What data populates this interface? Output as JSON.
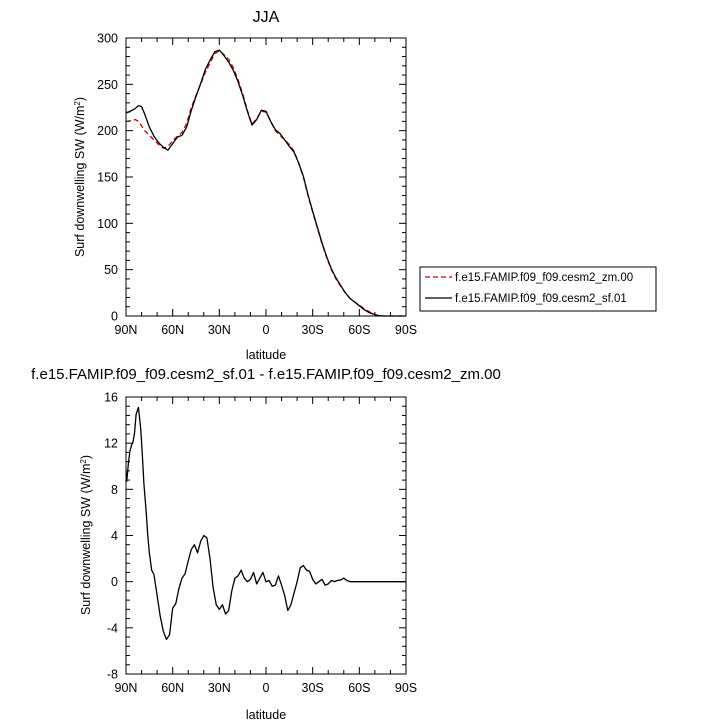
{
  "figure": {
    "top_title": "JJA",
    "bottom_title": "f.e15.FAMIP.f09_f09.cesm2_sf.01 - f.e15.FAMIP.f09_f09.cesm2_zm.00"
  },
  "chart_data": [
    {
      "type": "line",
      "title": "JJA",
      "xlabel": "latitude",
      "ylabel": "Surf downwelling SW (W/m²)",
      "ylabel_main": "Surf downwelling SW (W/m",
      "ylabel_sup": "2",
      "ylabel_close": ")",
      "xlim": [
        90,
        -90
      ],
      "ylim": [
        0,
        300
      ],
      "xticks": [
        90,
        60,
        30,
        0,
        -30,
        -60,
        -90
      ],
      "xtick_labels": [
        "90N",
        "60N",
        "30N",
        "0",
        "30S",
        "60S",
        "90S"
      ],
      "yticks": [
        0,
        50,
        100,
        150,
        200,
        250,
        300
      ],
      "ytick_labels": [
        "0",
        "50",
        "100",
        "150",
        "200",
        "250",
        "300"
      ],
      "legend_position": "right",
      "series": [
        {
          "name": "f.e15.FAMIP.f09_f09.cesm2_zm.00",
          "color": "#cc0000",
          "dash": "dashed",
          "x": [
            90,
            86,
            84,
            82,
            80,
            78,
            75,
            72,
            69,
            66,
            63,
            60,
            57,
            54,
            51,
            48,
            45,
            42,
            39,
            36,
            33,
            30,
            27,
            24,
            21,
            18,
            15,
            12,
            9,
            6,
            3,
            0,
            -3,
            -6,
            -9,
            -12,
            -15,
            -18,
            -21,
            -24,
            -27,
            -30,
            -33,
            -36,
            -39,
            -42,
            -45,
            -48,
            -51,
            -54,
            -57,
            -60,
            -63,
            -66,
            -69,
            -72,
            -75,
            -78,
            -81,
            -84,
            -87,
            -90
          ],
          "y": [
            210,
            211,
            212,
            210,
            205,
            200,
            195,
            190,
            185,
            181,
            183,
            189,
            194,
            198,
            208,
            225,
            238,
            250,
            263,
            273,
            283,
            286,
            282,
            277,
            268,
            255,
            240,
            222,
            207,
            213,
            221,
            220,
            210,
            200,
            195,
            190,
            185,
            178,
            165,
            150,
            130,
            112,
            95,
            78,
            63,
            50,
            40,
            32,
            25,
            19,
            15,
            12,
            8,
            5,
            2,
            0.5,
            0,
            0,
            0,
            0,
            0,
            0
          ]
        },
        {
          "name": "f.e15.FAMIP.f09_f09.cesm2_sf.01",
          "color": "#000000",
          "dash": "solid",
          "x": [
            90,
            86,
            84,
            82,
            80,
            78,
            75,
            72,
            69,
            66,
            63,
            60,
            57,
            54,
            51,
            48,
            45,
            42,
            39,
            36,
            33,
            30,
            27,
            24,
            21,
            18,
            15,
            12,
            9,
            6,
            3,
            0,
            -3,
            -6,
            -9,
            -12,
            -15,
            -18,
            -21,
            -24,
            -27,
            -30,
            -33,
            -36,
            -39,
            -42,
            -45,
            -48,
            -51,
            -54,
            -57,
            -60,
            -63,
            -66,
            -69,
            -72,
            -75,
            -78,
            -81,
            -84,
            -87,
            -90
          ],
          "y": [
            219,
            222,
            224,
            227,
            226,
            218,
            204,
            194,
            187,
            182,
            179,
            186,
            193,
            195,
            204,
            222,
            237,
            251,
            266,
            276,
            285,
            287,
            281,
            274,
            265,
            253,
            238,
            221,
            206,
            212,
            222,
            221,
            210,
            201,
            197,
            190,
            183,
            177,
            165,
            151,
            131,
            113,
            96,
            79,
            64,
            51,
            41,
            33,
            25,
            19,
            15,
            11,
            7,
            4,
            2,
            0.5,
            0,
            0,
            0,
            0,
            0,
            0
          ]
        }
      ]
    },
    {
      "type": "line",
      "title": "f.e15.FAMIP.f09_f09.cesm2_sf.01 - f.e15.FAMIP.f09_f09.cesm2_zm.00",
      "xlabel": "latitude",
      "ylabel": "Surf downwelling SW (W/m²)",
      "ylabel_main": "Surf downwelling SW (W/m",
      "ylabel_sup": "2",
      "ylabel_close": ")",
      "xlim": [
        90,
        -90
      ],
      "ylim": [
        -8,
        16
      ],
      "xticks": [
        90,
        60,
        30,
        0,
        -30,
        -60,
        -90
      ],
      "xtick_labels": [
        "90N",
        "60N",
        "30N",
        "0",
        "30S",
        "60S",
        "90S"
      ],
      "yticks": [
        -8,
        -4,
        0,
        4,
        8,
        12,
        16
      ],
      "ytick_labels": [
        "-8",
        "-4",
        "0",
        "4",
        "8",
        "12",
        "16"
      ],
      "series": [
        {
          "color": "#000000",
          "dash": "solid",
          "x": [
            90,
            89.5,
            88.5,
            87.5,
            86.5,
            85.5,
            84.5,
            83.5,
            82,
            80.5,
            79.5,
            78.5,
            77,
            76,
            75,
            73.5,
            72,
            70,
            68,
            66,
            64,
            62,
            60,
            58,
            56,
            54,
            52,
            50,
            48,
            46,
            44,
            42,
            40,
            38,
            36,
            34,
            32,
            30,
            28,
            26,
            24,
            22,
            20,
            18,
            16,
            14,
            12,
            10,
            8,
            6,
            4,
            2,
            0,
            -2,
            -4,
            -6,
            -8,
            -10,
            -12,
            -14,
            -16,
            -18,
            -20,
            -22,
            -24,
            -26,
            -28,
            -30,
            -32,
            -34,
            -36,
            -38,
            -40,
            -42,
            -44,
            -46,
            -48,
            -50,
            -52,
            -54,
            -56,
            -58,
            -60,
            -62,
            -64,
            -66,
            -68,
            -70,
            -72,
            -74,
            -76,
            -78,
            -80,
            -82,
            -84,
            -86,
            -88,
            -90
          ],
          "y": [
            9.5,
            8.7,
            10.2,
            11.3,
            11.8,
            12.1,
            12.9,
            14.5,
            15.1,
            13.2,
            11.0,
            8.5,
            6.0,
            4.0,
            2.5,
            1.0,
            0.6,
            -1.2,
            -3.0,
            -4.3,
            -5.0,
            -4.6,
            -2.3,
            -1.9,
            -0.6,
            0.3,
            0.7,
            1.8,
            2.8,
            3.2,
            2.5,
            3.5,
            4.0,
            3.8,
            2.0,
            -0.5,
            -2.0,
            -2.4,
            -2.0,
            -2.8,
            -2.5,
            -0.8,
            0.3,
            0.5,
            1.0,
            0.3,
            0.0,
            0.2,
            0.8,
            -0.2,
            0.3,
            0.8,
            0.0,
            0.1,
            -0.4,
            -0.3,
            0.5,
            -0.3,
            -1.2,
            -2.5,
            -2.0,
            -1.0,
            0.0,
            1.2,
            1.4,
            1.0,
            0.9,
            0.2,
            -0.2,
            0.0,
            0.2,
            -0.3,
            -0.2,
            0.1,
            0.0,
            0.1,
            0.15,
            0.3,
            0.1,
            0.0,
            0.0,
            0.0,
            0.0,
            0.0,
            0.0,
            0.0,
            0.0,
            0.0,
            0.0,
            0.0,
            0.0,
            0.0,
            0.0,
            0.0,
            0.0,
            0.0,
            0.0,
            0.0
          ]
        }
      ]
    }
  ]
}
